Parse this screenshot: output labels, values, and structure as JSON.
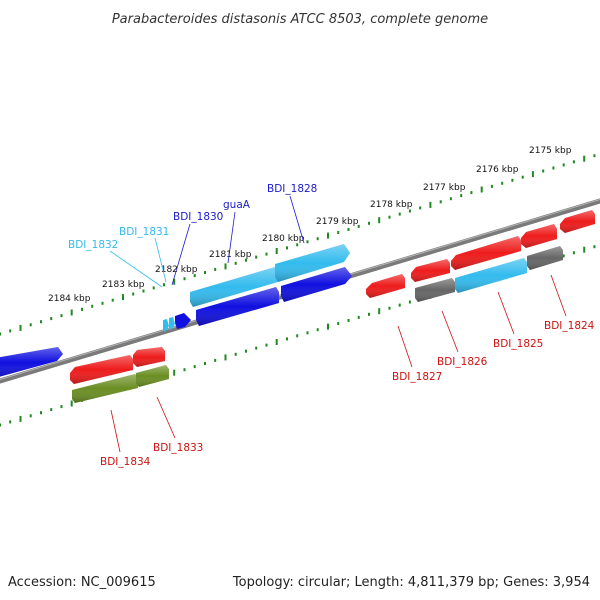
{
  "title": "Parabacteroides distasonis ATCC 8503, complete genome",
  "footer": {
    "accession": "Accession: NC_009615",
    "summary": "Topology: circular; Length: 4,811,379 bp; Genes: 3,954"
  },
  "colors": {
    "backbone": "#808080",
    "tick": "#1f8a1f",
    "strand_plus_cds": "#1010e0",
    "strand_plus_rna": "#33bbee",
    "strand_minus_cds": "#ee1c1c",
    "strand_minus_other": "#6b8e23",
    "pseudo": "#777777",
    "label_plus": "#1a1acc",
    "label_plus_light": "#33bbee",
    "label_minus": "#cc1111"
  },
  "axis": {
    "unit": "kbp",
    "ticks": [
      "2184 kbp",
      "2183 kbp",
      "2182 kbp",
      "2181 kbp",
      "2180 kbp",
      "2179 kbp",
      "2178 kbp",
      "2177 kbp",
      "2176 kbp",
      "2175 kbp"
    ]
  },
  "gene_labels": [
    {
      "name": "BDI_1832",
      "color": "label_plus_light"
    },
    {
      "name": "BDI_1831",
      "color": "label_plus_light"
    },
    {
      "name": "BDI_1830",
      "color": "label_plus"
    },
    {
      "name": "guaA",
      "color": "label_plus"
    },
    {
      "name": "BDI_1828",
      "color": "label_plus"
    },
    {
      "name": "BDI_1827",
      "color": "label_minus"
    },
    {
      "name": "BDI_1826",
      "color": "label_minus"
    },
    {
      "name": "BDI_1825",
      "color": "label_minus"
    },
    {
      "name": "BDI_1824",
      "color": "label_minus"
    },
    {
      "name": "BDI_1834",
      "color": "label_minus"
    },
    {
      "name": "BDI_1833",
      "color": "label_minus"
    }
  ]
}
